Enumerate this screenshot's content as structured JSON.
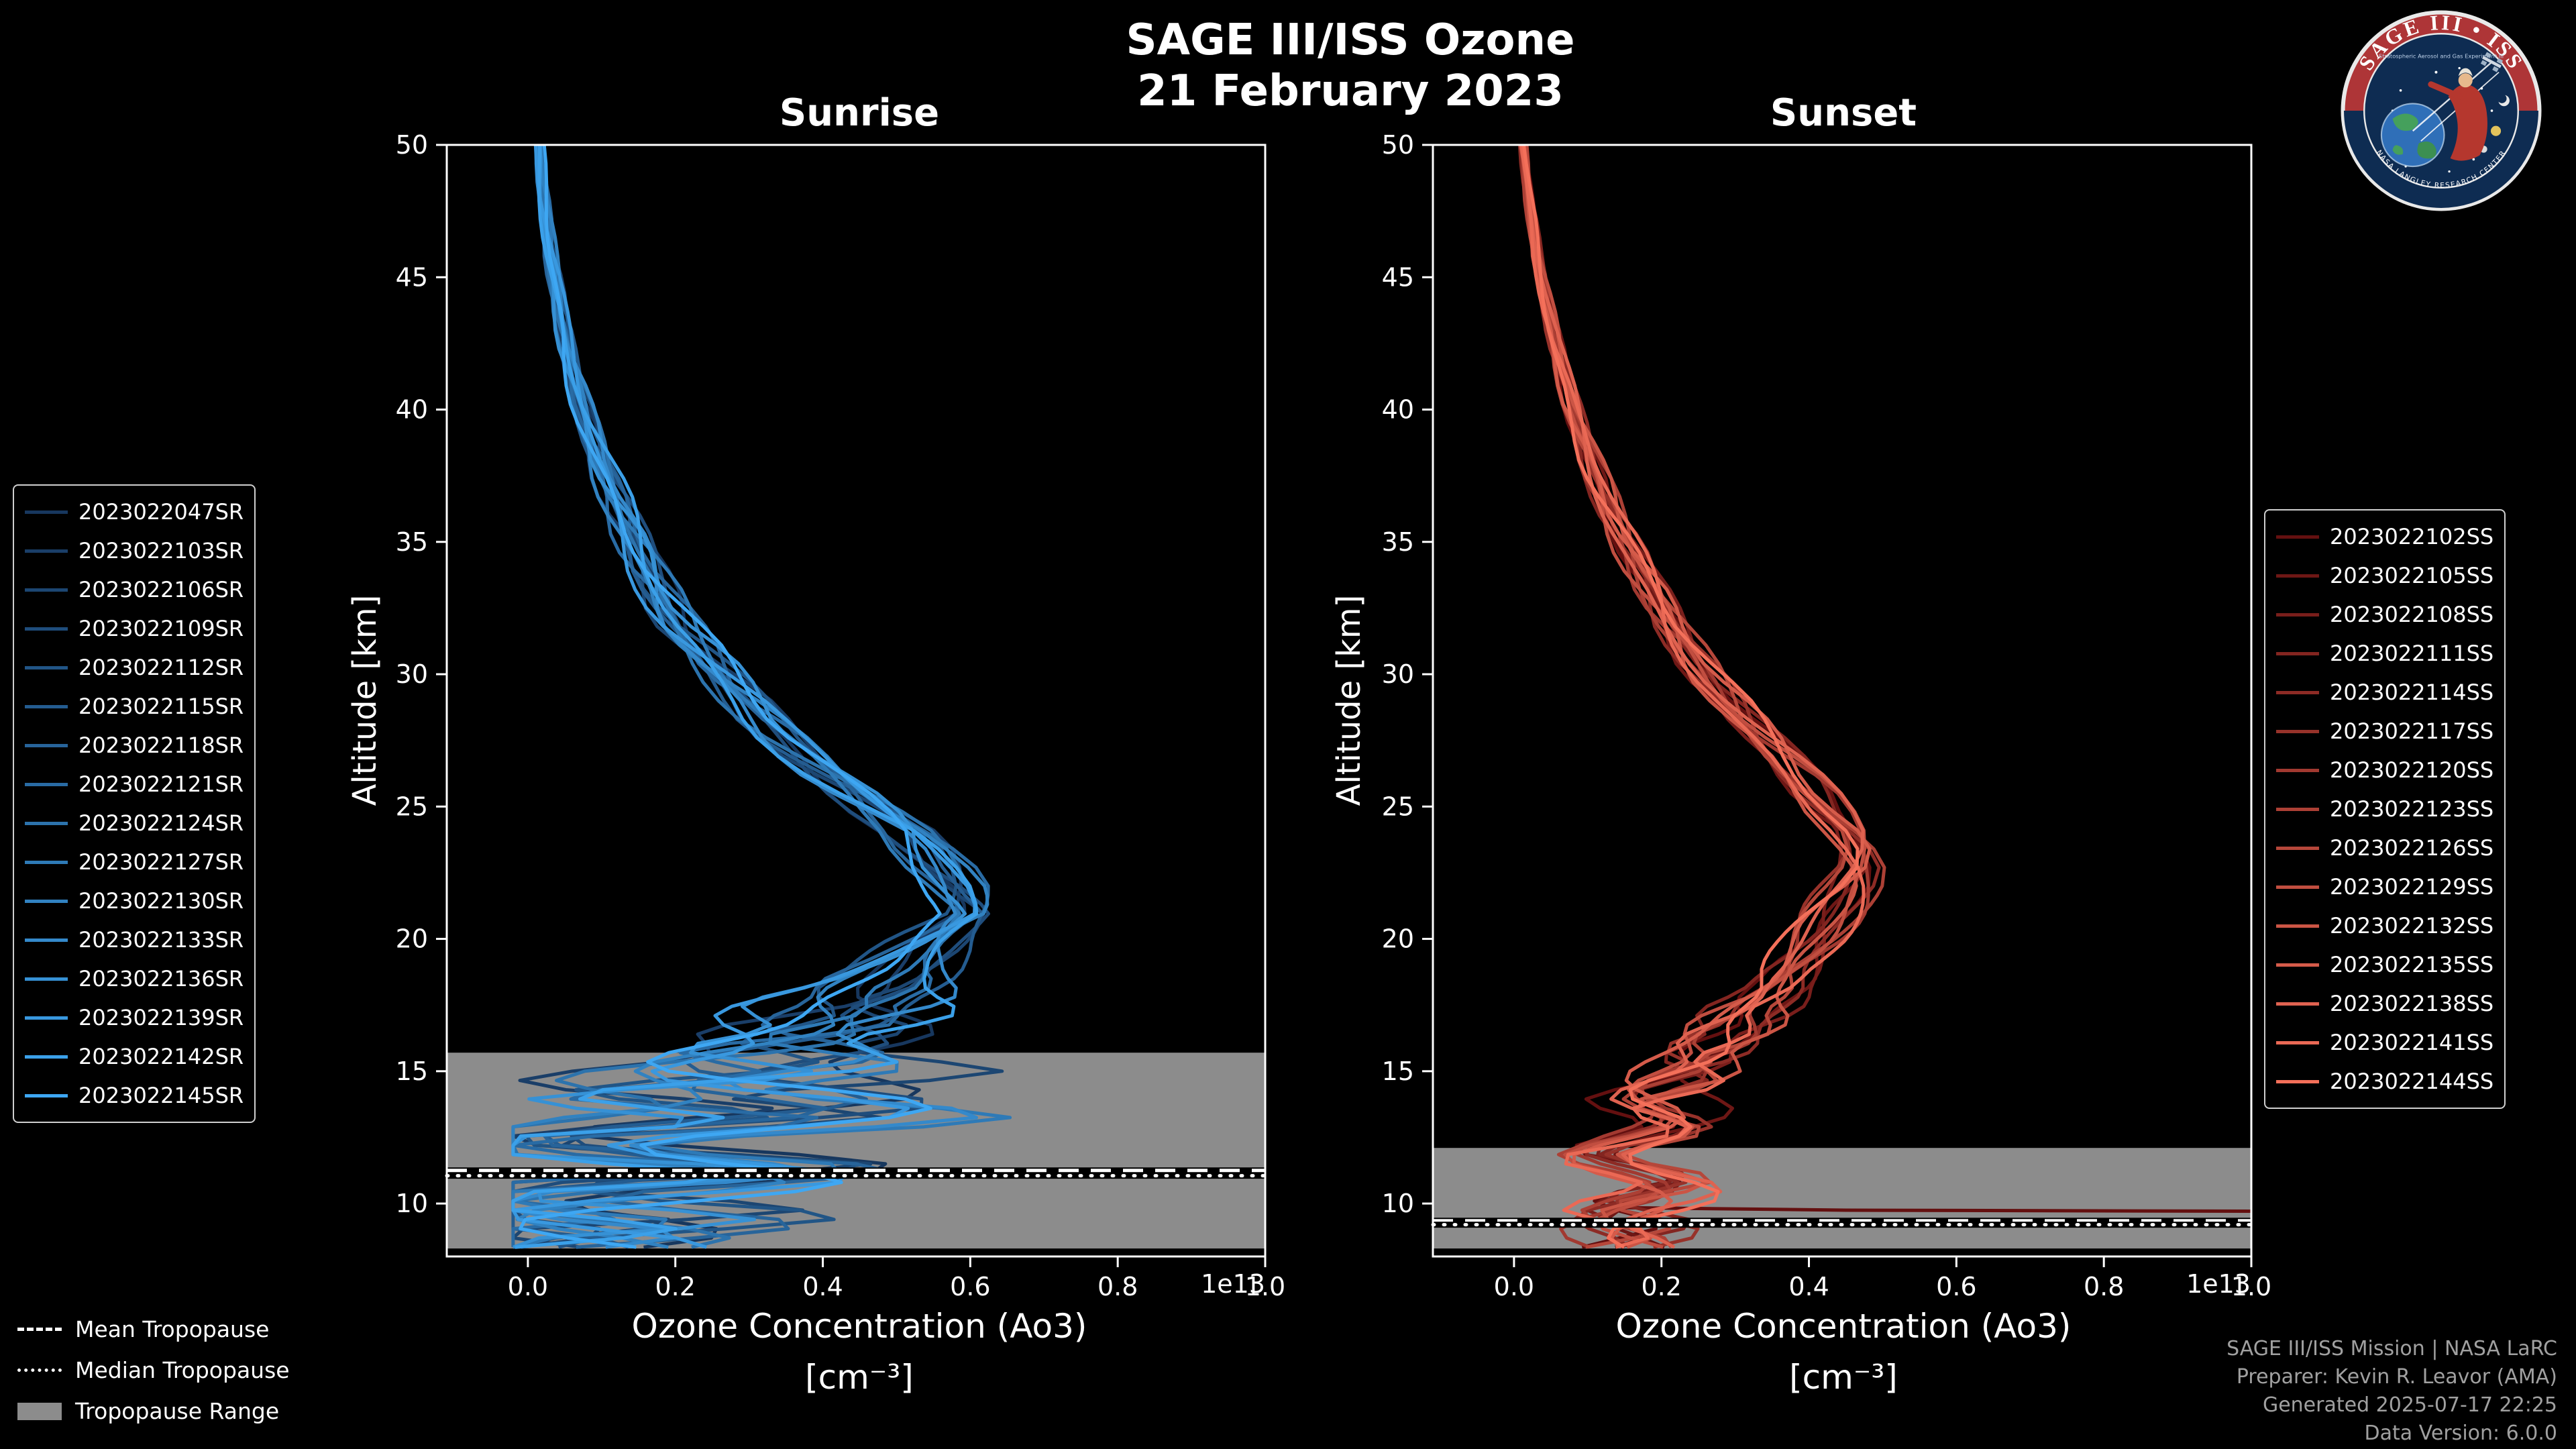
{
  "header": {
    "title_line1": "SAGE III/ISS Ozone",
    "title_line2": "21 February 2023"
  },
  "logo": {
    "top_text": "SAGE III • ISS",
    "subtitle": "Stratospheric Aerosol and Gas Experiment III",
    "bottom_text": "NASA LANGLEY RESEARCH CENTER"
  },
  "tropopause_legend": {
    "mean_label": "Mean Tropopause",
    "median_label": "Median Tropopause",
    "range_label": "Tropopause Range"
  },
  "footer": {
    "lines": [
      "SAGE III/ISS Mission | NASA LaRC",
      "Preparer: Kevin R. Leavor (AMA)",
      "Generated 2025-07-17 22:25",
      "Data Version: 6.0.0"
    ]
  },
  "chart_data": [
    {
      "type": "line",
      "panel": "sunrise",
      "title": "Sunrise",
      "xlabel": "Ozone Concentration (Ao3)",
      "xlabel_units": "[cm⁻³]",
      "ylabel": "Altitude [km]",
      "x_offset_label": "1e13",
      "xlim": [
        -0.11,
        1.0
      ],
      "ylim": [
        8.0,
        50.0
      ],
      "x_ticks": [
        0.0,
        0.2,
        0.4,
        0.6,
        0.8,
        1.0
      ],
      "y_ticks": [
        10,
        15,
        20,
        25,
        30,
        35,
        40,
        45,
        50
      ],
      "grid": false,
      "tropopause": {
        "mean_km": 11.25,
        "median_km": 11.05,
        "range_km": [
          8.3,
          15.7
        ]
      },
      "mean_profile": [
        [
          50,
          0.015
        ],
        [
          48,
          0.022
        ],
        [
          46,
          0.03
        ],
        [
          44,
          0.042
        ],
        [
          42,
          0.056
        ],
        [
          40,
          0.075
        ],
        [
          38,
          0.098
        ],
        [
          36,
          0.128
        ],
        [
          34,
          0.16
        ],
        [
          32,
          0.2
        ],
        [
          30,
          0.26
        ],
        [
          28,
          0.33
        ],
        [
          26,
          0.42
        ],
        [
          24,
          0.52
        ],
        [
          22,
          0.58
        ],
        [
          21,
          0.6
        ],
        [
          20,
          0.55
        ],
        [
          18,
          0.47
        ],
        [
          16,
          0.36
        ],
        [
          14,
          0.27
        ],
        [
          12,
          0.18
        ],
        [
          10,
          0.11
        ],
        [
          8,
          0.07
        ]
      ],
      "spread_profile": [
        [
          50,
          0.008
        ],
        [
          44,
          0.012
        ],
        [
          40,
          0.018
        ],
        [
          36,
          0.03
        ],
        [
          32,
          0.04
        ],
        [
          28,
          0.045
        ],
        [
          24,
          0.05
        ],
        [
          21,
          0.06
        ],
        [
          19,
          0.09
        ],
        [
          17,
          0.17
        ],
        [
          15,
          0.24
        ],
        [
          13,
          0.27
        ],
        [
          11,
          0.24
        ],
        [
          9,
          0.16
        ],
        [
          8,
          0.12
        ]
      ],
      "series": [
        {
          "name": "2023022047SR",
          "color": "#17375e"
        },
        {
          "name": "2023022103SR",
          "color": "#1a3e68"
        },
        {
          "name": "2023022106SR",
          "color": "#1c4672"
        },
        {
          "name": "2023022109SR",
          "color": "#1f4d7c"
        },
        {
          "name": "2023022112SR",
          "color": "#215586"
        },
        {
          "name": "2023022115SR",
          "color": "#245c90"
        },
        {
          "name": "2023022118SR",
          "color": "#27649a"
        },
        {
          "name": "2023022121SR",
          "color": "#296ba4"
        },
        {
          "name": "2023022124SR",
          "color": "#2c73ad"
        },
        {
          "name": "2023022127SR",
          "color": "#2e7ab7"
        },
        {
          "name": "2023022130SR",
          "color": "#3182c1"
        },
        {
          "name": "2023022133SR",
          "color": "#3489cb"
        },
        {
          "name": "2023022136SR",
          "color": "#3691d5"
        },
        {
          "name": "2023022139SR",
          "color": "#3998df"
        },
        {
          "name": "2023022142SR",
          "color": "#3ba0e9"
        },
        {
          "name": "2023022145SR",
          "color": "#3ea7f3"
        }
      ]
    },
    {
      "type": "line",
      "panel": "sunset",
      "title": "Sunset",
      "xlabel": "Ozone Concentration (Ao3)",
      "xlabel_units": "[cm⁻³]",
      "ylabel": "Altitude [km]",
      "x_offset_label": "1e13",
      "xlim": [
        -0.11,
        1.0
      ],
      "ylim": [
        8.0,
        50.0
      ],
      "x_ticks": [
        0.0,
        0.2,
        0.4,
        0.6,
        0.8,
        1.0
      ],
      "y_ticks": [
        10,
        15,
        20,
        25,
        30,
        35,
        40,
        45,
        50
      ],
      "grid": false,
      "tropopause": {
        "mean_km": 9.35,
        "median_km": 9.2,
        "range_km": [
          8.3,
          12.1
        ]
      },
      "mean_profile": [
        [
          50,
          0.012
        ],
        [
          48,
          0.02
        ],
        [
          46,
          0.03
        ],
        [
          44,
          0.045
        ],
        [
          42,
          0.06
        ],
        [
          40,
          0.08
        ],
        [
          38,
          0.105
        ],
        [
          36,
          0.135
        ],
        [
          34,
          0.17
        ],
        [
          32,
          0.21
        ],
        [
          30,
          0.26
        ],
        [
          28,
          0.32
        ],
        [
          26,
          0.39
        ],
        [
          24,
          0.455
        ],
        [
          23,
          0.47
        ],
        [
          22,
          0.455
        ],
        [
          20,
          0.41
        ],
        [
          18,
          0.35
        ],
        [
          16,
          0.27
        ],
        [
          14,
          0.2
        ],
        [
          12,
          0.165
        ],
        [
          10,
          0.17
        ],
        [
          8,
          0.15
        ]
      ],
      "spread_profile": [
        [
          50,
          0.006
        ],
        [
          44,
          0.01
        ],
        [
          40,
          0.015
        ],
        [
          36,
          0.025
        ],
        [
          32,
          0.032
        ],
        [
          28,
          0.038
        ],
        [
          24,
          0.045
        ],
        [
          22,
          0.05
        ],
        [
          20,
          0.055
        ],
        [
          18,
          0.06
        ],
        [
          16,
          0.07
        ],
        [
          14,
          0.07
        ],
        [
          12,
          0.07
        ],
        [
          10,
          0.06
        ],
        [
          8,
          0.05
        ]
      ],
      "extra_lines": [
        {
          "series": "2023022102SS",
          "color": "#641010",
          "points": [
            [
              0.13,
              9.85
            ],
            [
              0.45,
              9.75
            ],
            [
              1.13,
              9.7
            ]
          ]
        }
      ],
      "series": [
        {
          "name": "2023022102SS",
          "color": "#641010"
        },
        {
          "name": "2023022105SS",
          "color": "#6e1715"
        },
        {
          "name": "2023022108SS",
          "color": "#791e1b"
        },
        {
          "name": "2023022111SS",
          "color": "#832520"
        },
        {
          "name": "2023022114SS",
          "color": "#8d2b25"
        },
        {
          "name": "2023022117SS",
          "color": "#97322a"
        },
        {
          "name": "2023022120SS",
          "color": "#a23930"
        },
        {
          "name": "2023022123SS",
          "color": "#ac4035"
        },
        {
          "name": "2023022126SS",
          "color": "#b6473a"
        },
        {
          "name": "2023022129SS",
          "color": "#c14e40"
        },
        {
          "name": "2023022132SS",
          "color": "#cb5545"
        },
        {
          "name": "2023022135SS",
          "color": "#d55b4a"
        },
        {
          "name": "2023022138SS",
          "color": "#df6250"
        },
        {
          "name": "2023022141SS",
          "color": "#ea6955"
        },
        {
          "name": "2023022144SS",
          "color": "#f4705a"
        }
      ]
    }
  ]
}
